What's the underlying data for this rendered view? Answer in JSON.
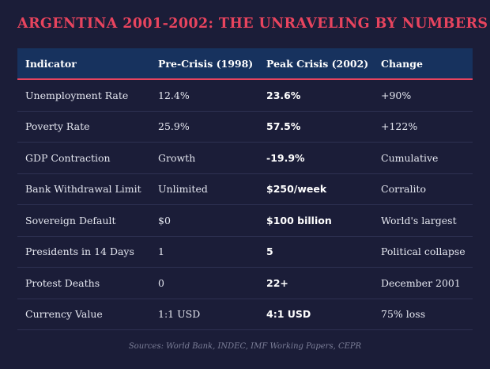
{
  "title": "ARGENTINA 2001-2002: THE UNRAVELING BY NUMBERS",
  "table": {
    "headers": [
      "Indicator",
      "Pre-Crisis (1998)",
      "Peak Crisis (2002)",
      "Change"
    ],
    "rows": [
      [
        "Unemployment Rate",
        "12.4%",
        "23.6%",
        "+90%"
      ],
      [
        "Poverty Rate",
        "25.9%",
        "57.5%",
        "+122%"
      ],
      [
        "GDP Contraction",
        "Growth",
        "-19.9%",
        "Cumulative"
      ],
      [
        "Bank Withdrawal Limit",
        "Unlimited",
        "$250/week",
        "Corralito"
      ],
      [
        "Sovereign Default",
        "$0",
        "$100 billion",
        "World's largest"
      ],
      [
        "Presidents in 14 Days",
        "1",
        "5",
        "Political collapse"
      ],
      [
        "Protest Deaths",
        "0",
        "22+",
        "December 2001"
      ],
      [
        "Currency Value",
        "1:1 USD",
        "4:1 USD",
        "75% loss"
      ]
    ]
  },
  "sources": "Sources: World Bank, INDEC, IMF Working Papers, CEPR"
}
